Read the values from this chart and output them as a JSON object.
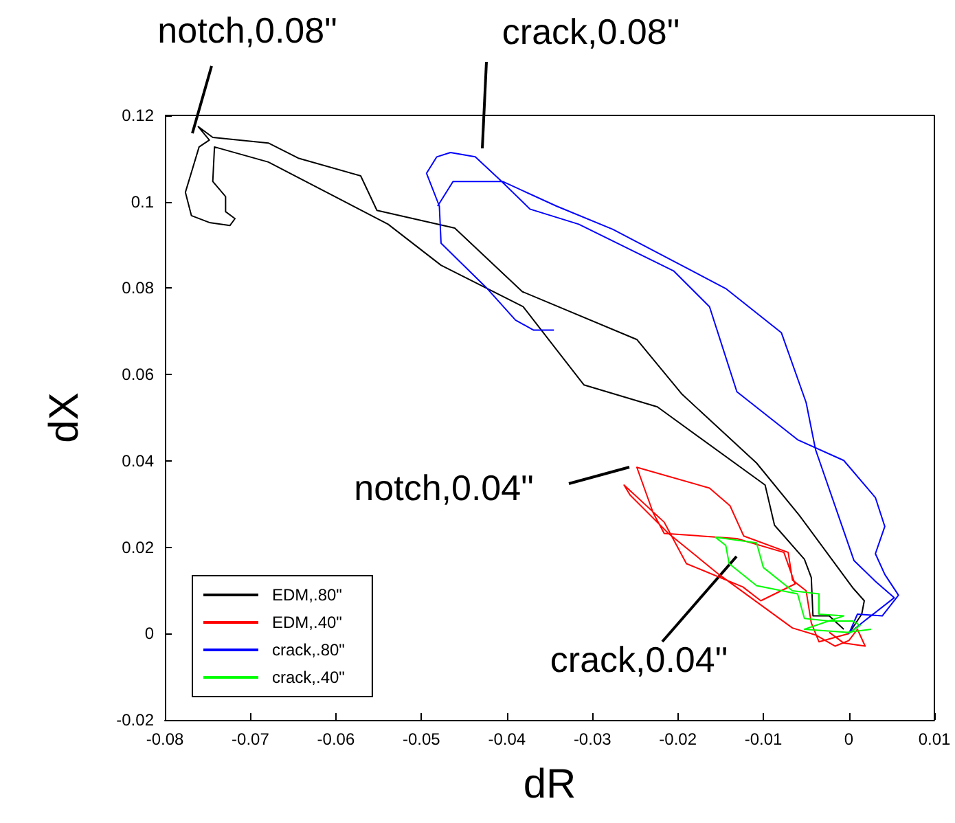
{
  "chart_data": {
    "type": "line",
    "xlabel": "dR",
    "ylabel": "dX",
    "xlim": [
      -0.08,
      0.01
    ],
    "xticks": [
      -0.08,
      -0.07,
      -0.06,
      -0.05,
      -0.04,
      -0.03,
      -0.02,
      -0.01,
      0,
      0.01
    ],
    "ylim": [
      -0.02,
      0.12
    ],
    "yticks": [
      -0.02,
      0,
      0.02,
      0.04,
      0.06,
      0.08,
      0.1,
      0.12
    ],
    "grid": false,
    "legend": "bottom left",
    "marker": "none",
    "line_style": "solid",
    "annotations": [
      "notch,0.08\"",
      "crack,0.08\"",
      "notch,0.04\"",
      "crack,0.04\""
    ],
    "series": [
      {
        "name": "EDM,.80\"",
        "color": "#000000",
        "x": [
          0,
          0.0015,
          0.0018,
          0.0005,
          -0.0058,
          -0.0108,
          -0.0195,
          -0.0248,
          -0.0382,
          -0.0461,
          -0.0552,
          -0.0571,
          -0.0644,
          -0.0679,
          -0.0744,
          -0.0761,
          -0.0748,
          -0.076,
          -0.0776,
          -0.0769,
          -0.0748,
          -0.0724,
          -0.0718,
          -0.0729,
          -0.0729,
          -0.0744,
          -0.0742,
          -0.0679,
          -0.0539,
          -0.0477,
          -0.0381,
          -0.031,
          -0.0224,
          -0.0098,
          -0.0087,
          -0.0052,
          -0.0044,
          -0.0042,
          -0.0023,
          -0.0006
        ],
        "values": [
          0,
          0.0045,
          0.0076,
          0.0105,
          0.0274,
          0.0395,
          0.0554,
          0.0681,
          0.0792,
          0.0939,
          0.098,
          0.106,
          0.1101,
          0.1136,
          0.1149,
          0.1174,
          0.1143,
          0.1127,
          0.1022,
          0.0968,
          0.0952,
          0.0945,
          0.0961,
          0.0977,
          0.1012,
          0.1047,
          0.1127,
          0.1092,
          0.0948,
          0.0853,
          0.0757,
          0.0576,
          0.0525,
          0.0344,
          0.0251,
          0.0172,
          0.013,
          0.0041,
          0.0041,
          0.001
        ]
      },
      {
        "name": "EDM,.40\"",
        "color": "#ff0000",
        "x": [
          0,
          -0.0035,
          -0.0044,
          -0.005,
          -0.0066,
          -0.0071,
          -0.0123,
          -0.0139,
          -0.0163,
          -0.0248,
          -0.0229,
          -0.0216,
          -0.0131,
          -0.0076,
          -0.0063,
          -0.0103,
          -0.0124,
          -0.019,
          -0.0216,
          -0.0263,
          -0.0256,
          -0.0211,
          -0.0152,
          -0.0066,
          -0.0039,
          -0.0016,
          0,
          0.001,
          0.0019,
          -0.0006,
          -0.0023
        ],
        "values": [
          0,
          -0.0019,
          0.0025,
          0.0099,
          0.0124,
          0.0188,
          0.0226,
          0.0296,
          0.0337,
          0.0385,
          0.028,
          0.0232,
          0.022,
          0.0188,
          0.0115,
          0.0076,
          0.0108,
          0.0162,
          0.0258,
          0.0344,
          0.0321,
          0.0232,
          0.0137,
          0.0013,
          -0.0003,
          -0.0029,
          -0.0016,
          0.001,
          -0.0029,
          -0.0022,
          0.0003
        ]
      },
      {
        "name": "crack,.80\"",
        "color": "#0000ff",
        "x": [
          -0.0345,
          -0.0369,
          -0.039,
          -0.0423,
          -0.0477,
          -0.0479,
          -0.0494,
          -0.0482,
          -0.0466,
          -0.0437,
          -0.0406,
          -0.0373,
          -0.0316,
          -0.0205,
          -0.0163,
          -0.0131,
          -0.006,
          -0.0006,
          0.0031,
          0.0042,
          0.0031,
          0.0042,
          0.0058,
          0.0039,
          0.001,
          0,
          0.0018,
          0.0053,
          0.0031,
          0.0006,
          -0.0039,
          -0.005,
          -0.0079,
          -0.0144,
          -0.0276,
          -0.0342,
          -0.0405,
          -0.0463,
          -0.0481
        ],
        "values": [
          0.0703,
          0.0703,
          0.0726,
          0.0799,
          0.0904,
          0.099,
          0.1066,
          0.1104,
          0.1114,
          0.1104,
          0.1047,
          0.0983,
          0.0948,
          0.084,
          0.0757,
          0.056,
          0.0449,
          0.0401,
          0.0315,
          0.0248,
          0.0185,
          0.0137,
          0.0089,
          0.0041,
          0.0045,
          0,
          0.0029,
          0.0083,
          0.0121,
          0.0169,
          0.0426,
          0.0535,
          0.0697,
          0.0799,
          0.0936,
          0.099,
          0.1047,
          0.1047,
          0.099
        ]
      },
      {
        "name": "crack,.40\"",
        "color": "#00ff00",
        "x": [
          0,
          0.0013,
          0.0005,
          -0.0023,
          -0.0052,
          -0.006,
          -0.0108,
          -0.014,
          -0.0144,
          -0.0156,
          -0.0108,
          -0.01,
          -0.0066,
          -0.0035,
          -0.0035,
          -0.0006,
          -0.0052,
          -0.0002,
          0.0026
        ],
        "values": [
          0,
          0.0019,
          0.0029,
          0.0029,
          0.0035,
          0.0092,
          0.0111,
          0.0162,
          0.0204,
          0.0223,
          0.021,
          0.0153,
          0.0099,
          0.0092,
          0.0045,
          0.0041,
          0.001,
          0.0003,
          0.001
        ]
      }
    ]
  }
}
